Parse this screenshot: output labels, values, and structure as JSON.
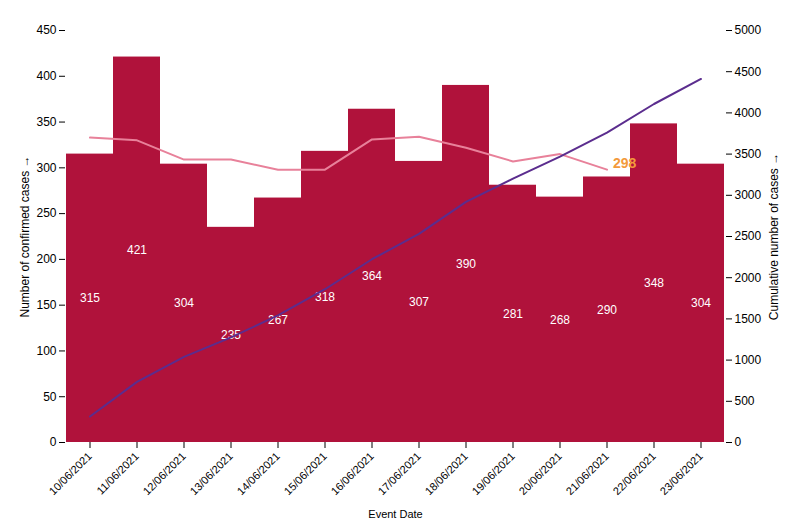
{
  "chart_data": {
    "type": "bar",
    "x_label": "Event Date",
    "y_label": "Number of confirmed cases",
    "y2_label": "Cumulative number of cases",
    "categories": [
      "10/06/2021",
      "11/06/2021",
      "12/06/2021",
      "13/06/2021",
      "14/06/2021",
      "15/06/2021",
      "16/06/2021",
      "17/06/2021",
      "18/06/2021",
      "19/06/2021",
      "20/06/2021",
      "21/06/2021",
      "22/06/2021",
      "23/06/2021"
    ],
    "series": [
      {
        "type": "bar",
        "color": "#b0123b",
        "values": [
          315,
          421,
          304,
          235,
          267,
          318,
          364,
          307,
          390,
          281,
          268,
          290,
          348,
          304
        ]
      },
      {
        "type": "line",
        "color": "#e8819a",
        "values": [
          333,
          330,
          309,
          309,
          298,
          298,
          331,
          334,
          322,
          307,
          315,
          298,
          null,
          null
        ]
      },
      {
        "type": "line",
        "color": "#5b2d8e",
        "axis": "y2",
        "values": [
          315,
          736,
          1040,
          1275,
          1542,
          1860,
          2224,
          2531,
          2921,
          3202,
          3470,
          3760,
          4108,
          4412
        ]
      }
    ],
    "annotations": [
      {
        "text": "298",
        "x": "21/06/2021",
        "y": 298,
        "color": "#f39a3b"
      }
    ],
    "data_labels": true,
    "ylim": [
      0,
      450
    ],
    "yticks": [
      0,
      50,
      100,
      150,
      200,
      250,
      300,
      350,
      400,
      450
    ],
    "y2lim": [
      0,
      5000
    ],
    "y2ticks": [
      0,
      500,
      1000,
      1500,
      2000,
      2500,
      3000,
      3500,
      4000,
      4500,
      5000
    ],
    "grid": false
  }
}
